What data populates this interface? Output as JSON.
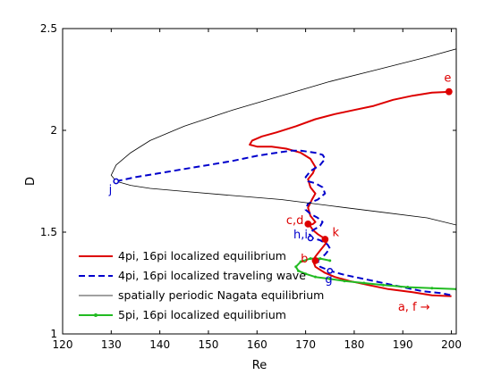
{
  "chart_data": {
    "type": "line",
    "xlabel": "Re",
    "ylabel": "D",
    "xlim": [
      120,
      201
    ],
    "ylim": [
      1,
      2.5
    ],
    "x_ticks": [
      "120",
      "130",
      "140",
      "150",
      "160",
      "170",
      "180",
      "190",
      "200"
    ],
    "y_ticks": [
      "1",
      "1.5",
      "2",
      "2.5"
    ],
    "grid": false,
    "legend_position": "bottom-left",
    "colors": {
      "red": "#dd0000",
      "blue": "#0000cc",
      "black": "#000000",
      "green": "#22bb22"
    },
    "series": [
      {
        "name": "4pi, 16pi localized equilibrium",
        "color": "#dd0000",
        "style": "solid",
        "x": [
          200,
          196,
          192,
          188,
          184,
          180,
          176,
          172,
          168,
          164,
          161,
          159,
          158.5,
          160,
          163,
          166,
          169,
          171,
          172,
          171.5,
          170.5,
          171,
          172,
          171.3,
          170.5,
          171,
          172,
          171.5,
          170.8,
          171.5,
          172.5,
          173.5,
          174.5,
          174,
          173,
          172,
          171.5,
          172,
          174,
          176,
          179,
          183,
          187,
          192,
          196,
          200
        ],
        "y": [
          2.19,
          2.185,
          2.17,
          2.15,
          2.12,
          2.1,
          2.08,
          2.055,
          2.02,
          1.99,
          1.97,
          1.95,
          1.93,
          1.92,
          1.92,
          1.91,
          1.89,
          1.86,
          1.82,
          1.79,
          1.76,
          1.72,
          1.69,
          1.66,
          1.62,
          1.58,
          1.55,
          1.54,
          1.535,
          1.51,
          1.49,
          1.475,
          1.46,
          1.44,
          1.41,
          1.38,
          1.36,
          1.33,
          1.3,
          1.28,
          1.26,
          1.24,
          1.22,
          1.205,
          1.19,
          1.185
        ]
      },
      {
        "name": "4pi, 16pi localized traveling wave",
        "color": "#0000cc",
        "style": "dashed",
        "x": [
          131,
          135,
          140,
          145,
          150,
          155,
          160,
          164,
          167,
          169,
          170.5,
          172,
          173.5,
          174,
          173,
          171,
          170,
          170.5,
          172,
          173.5,
          174,
          172.5,
          170.5,
          170,
          171,
          172.5,
          173.5,
          173,
          171.5,
          170.8,
          171.5,
          173,
          174.5,
          175,
          174,
          172.5,
          173,
          175,
          178,
          182,
          186,
          190,
          194,
          198,
          200
        ],
        "y": [
          1.75,
          1.77,
          1.79,
          1.81,
          1.83,
          1.85,
          1.875,
          1.89,
          1.9,
          1.9,
          1.895,
          1.89,
          1.88,
          1.86,
          1.83,
          1.8,
          1.77,
          1.75,
          1.74,
          1.72,
          1.69,
          1.66,
          1.64,
          1.61,
          1.59,
          1.57,
          1.55,
          1.53,
          1.51,
          1.49,
          1.47,
          1.46,
          1.44,
          1.42,
          1.39,
          1.36,
          1.33,
          1.31,
          1.29,
          1.27,
          1.25,
          1.23,
          1.21,
          1.2,
          1.19
        ]
      },
      {
        "name": "spatially periodic Nagata equilibrium",
        "color": "#000000",
        "style": "solid",
        "x": [
          201,
          195,
          185,
          175,
          165,
          155,
          145,
          138,
          134,
          131,
          130,
          131,
          134,
          138,
          145,
          155,
          165,
          175,
          185,
          195,
          201
        ],
        "y": [
          2.4,
          2.36,
          2.3,
          2.24,
          2.17,
          2.1,
          2.02,
          1.95,
          1.89,
          1.83,
          1.78,
          1.75,
          1.73,
          1.715,
          1.7,
          1.68,
          1.66,
          1.63,
          1.6,
          1.57,
          1.535
        ]
      },
      {
        "name": "5pi, 16pi localized equilibrium",
        "color": "#22bb22",
        "style": "solid-marker",
        "x": [
          201,
          196,
          191,
          186,
          182,
          178,
          175,
          172,
          170,
          168.5,
          168,
          169,
          171,
          173,
          175
        ],
        "y": [
          1.22,
          1.225,
          1.23,
          1.24,
          1.25,
          1.26,
          1.27,
          1.28,
          1.295,
          1.31,
          1.33,
          1.355,
          1.37,
          1.37,
          1.36
        ]
      }
    ],
    "points": [
      {
        "label": "e",
        "x": 199.5,
        "y": 2.19,
        "color": "#dd0000",
        "marker": "filled"
      },
      {
        "label": "j",
        "x": 131,
        "y": 1.75,
        "color": "#0000cc",
        "marker": "open"
      },
      {
        "label": "c,d",
        "x": 170.5,
        "y": 1.54,
        "color": "#dd0000",
        "marker": "filled"
      },
      {
        "label": "k",
        "x": 174,
        "y": 1.465,
        "color": "#dd0000",
        "marker": "filled"
      },
      {
        "label": "h,i",
        "x": 171,
        "y": 1.47,
        "color": "#0000cc",
        "marker": "open"
      },
      {
        "label": "b",
        "x": 172,
        "y": 1.36,
        "color": "#dd0000",
        "marker": "filled"
      },
      {
        "label": "g",
        "x": 175,
        "y": 1.31,
        "color": "#0000cc",
        "marker": "open"
      }
    ],
    "annotations": [
      {
        "text": "e",
        "x": 198.5,
        "y": 2.24,
        "color": "#dd0000"
      },
      {
        "text": "j",
        "x": 129.5,
        "y": 1.69,
        "color": "#0000cc"
      },
      {
        "text": "c,d",
        "x": 166,
        "y": 1.54,
        "color": "#dd0000"
      },
      {
        "text": "k",
        "x": 175.5,
        "y": 1.48,
        "color": "#dd0000"
      },
      {
        "text": "h,i",
        "x": 167.5,
        "y": 1.47,
        "color": "#0000cc"
      },
      {
        "text": "b",
        "x": 169,
        "y": 1.35,
        "color": "#dd0000"
      },
      {
        "text": "g",
        "x": 174,
        "y": 1.25,
        "color": "#0000cc"
      },
      {
        "text": "a, f →",
        "x": 189,
        "y": 1.115,
        "color": "#dd0000"
      }
    ]
  }
}
